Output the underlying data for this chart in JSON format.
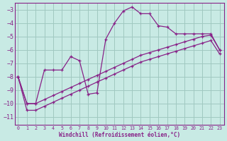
{
  "xlabel": "Windchill (Refroidissement éolien,°C)",
  "background_color": "#c8eae4",
  "grid_color": "#a0c8c0",
  "line_color": "#882288",
  "x_ticks": [
    0,
    1,
    2,
    3,
    4,
    5,
    6,
    7,
    8,
    9,
    10,
    11,
    12,
    13,
    14,
    15,
    16,
    17,
    18,
    19,
    20,
    21,
    22,
    23
  ],
  "y_ticks": [
    -3,
    -4,
    -5,
    -6,
    -7,
    -8,
    -9,
    -10,
    -11
  ],
  "ylim": [
    -11.6,
    -2.5
  ],
  "xlim": [
    -0.4,
    23.5
  ],
  "line1_x": [
    0,
    1,
    2,
    3,
    4,
    5,
    6,
    7,
    8,
    9,
    10,
    11,
    12,
    13,
    14,
    15,
    16,
    17,
    18,
    19,
    20,
    21,
    22,
    23
  ],
  "line1_y": [
    -8.0,
    -10.0,
    -10.0,
    -7.5,
    -7.5,
    -7.5,
    -6.5,
    -6.8,
    -9.3,
    -9.2,
    -5.2,
    -4.0,
    -3.1,
    -2.8,
    -3.3,
    -3.3,
    -4.2,
    -4.3,
    -4.8,
    -4.8,
    -4.8,
    -4.8,
    -4.8,
    -6.0
  ],
  "line2_x": [
    0,
    1,
    2,
    3,
    4,
    5,
    6,
    7,
    8,
    9,
    10,
    11,
    12,
    13,
    14,
    15,
    16,
    17,
    18,
    19,
    20,
    21,
    22,
    23
  ],
  "line2_y": [
    -8.0,
    -10.0,
    -10.0,
    -9.7,
    -9.4,
    -9.1,
    -8.8,
    -8.5,
    -8.2,
    -7.9,
    -7.6,
    -7.3,
    -7.0,
    -6.7,
    -6.4,
    -6.2,
    -6.0,
    -5.8,
    -5.6,
    -5.4,
    -5.2,
    -5.0,
    -4.9,
    -6.0
  ],
  "line3_x": [
    0,
    1,
    2,
    3,
    4,
    5,
    6,
    7,
    8,
    9,
    10,
    11,
    12,
    13,
    14,
    15,
    16,
    17,
    18,
    19,
    20,
    21,
    22,
    23
  ],
  "line3_y": [
    -8.0,
    -10.5,
    -10.5,
    -10.2,
    -9.9,
    -9.6,
    -9.3,
    -9.0,
    -8.7,
    -8.4,
    -8.1,
    -7.8,
    -7.5,
    -7.2,
    -6.9,
    -6.7,
    -6.5,
    -6.3,
    -6.1,
    -5.9,
    -5.7,
    -5.5,
    -5.3,
    -6.3
  ]
}
